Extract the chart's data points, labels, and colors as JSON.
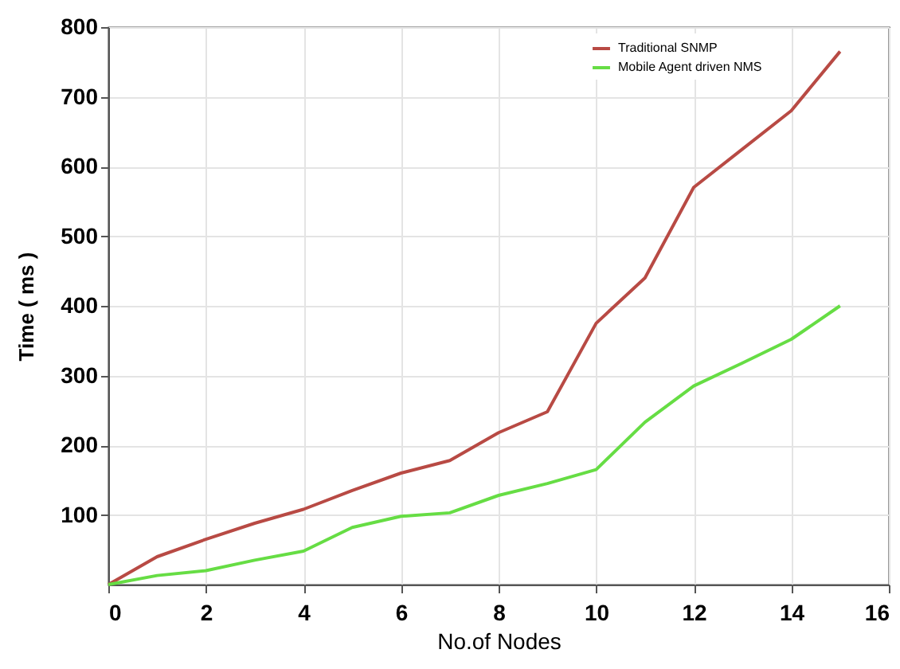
{
  "chart_data": {
    "type": "line",
    "xlabel": "No.of Nodes",
    "ylabel": "Time ( ms )",
    "x": [
      0,
      1,
      2,
      3,
      4,
      5,
      6,
      7,
      8,
      9,
      10,
      11,
      12,
      13,
      14,
      15
    ],
    "series": [
      {
        "name": "Traditional SNMP",
        "color": "#b84a44",
        "values": [
          0,
          40,
          65,
          88,
          108,
          135,
          160,
          178,
          218,
          248,
          375,
          440,
          570,
          625,
          680,
          765
        ]
      },
      {
        "name": "Mobile Agent driven NMS",
        "color": "#66dd44",
        "values": [
          0,
          13,
          20,
          35,
          48,
          82,
          98,
          103,
          128,
          145,
          165,
          233,
          285,
          318,
          352,
          400
        ]
      }
    ],
    "xlim": [
      0,
      16
    ],
    "xticks": [
      0,
      2,
      4,
      6,
      8,
      10,
      12,
      14,
      16
    ],
    "ylim": [
      0,
      800
    ],
    "yticks": [
      100,
      200,
      300,
      400,
      500,
      600,
      700,
      800
    ],
    "grid": true,
    "legend": "top right",
    "marker": "none",
    "line_style": "solid"
  }
}
